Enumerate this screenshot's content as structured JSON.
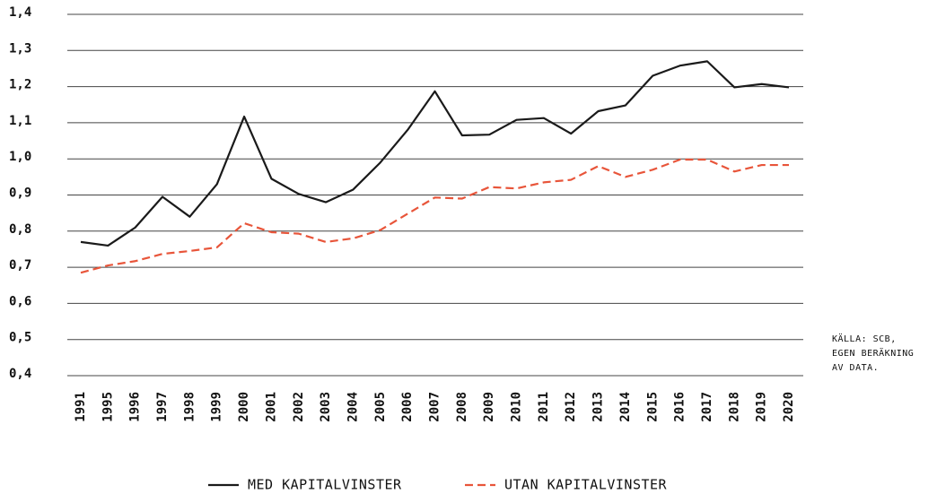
{
  "chart_data": {
    "type": "line",
    "categories": [
      "1991",
      "1995",
      "1996",
      "1997",
      "1998",
      "1999",
      "2000",
      "2001",
      "2002",
      "2003",
      "2004",
      "2005",
      "2006",
      "2007",
      "2008",
      "2009",
      "2010",
      "2011",
      "2012",
      "2013",
      "2014",
      "2015",
      "2016",
      "2017",
      "2018",
      "2019",
      "2020"
    ],
    "series": [
      {
        "name": "MED KAPITALVINSTER",
        "color": "#1a1a1a",
        "dash": false,
        "values": [
          0.77,
          0.76,
          0.81,
          0.895,
          0.84,
          0.93,
          1.117,
          0.945,
          0.903,
          0.88,
          0.915,
          0.99,
          1.08,
          1.187,
          1.065,
          1.067,
          1.108,
          1.113,
          1.07,
          1.132,
          1.148,
          1.23,
          1.258,
          1.27,
          1.198,
          1.207,
          1.198
        ]
      },
      {
        "name": "UTAN KAPITALVINSTER",
        "color": "#e8553a",
        "dash": true,
        "values": [
          0.685,
          0.705,
          0.717,
          0.737,
          0.745,
          0.755,
          0.822,
          0.797,
          0.793,
          0.77,
          0.78,
          0.803,
          0.848,
          0.893,
          0.89,
          0.922,
          0.918,
          0.935,
          0.942,
          0.98,
          0.95,
          0.97,
          0.998,
          0.998,
          0.965,
          0.983,
          0.983
        ]
      }
    ],
    "ylim": [
      0.4,
      1.4
    ],
    "yticks": [
      {
        "value": 0.4,
        "label": "0,4"
      },
      {
        "value": 0.5,
        "label": "0,5"
      },
      {
        "value": 0.6,
        "label": "0,6"
      },
      {
        "value": 0.7,
        "label": "0,7"
      },
      {
        "value": 0.8,
        "label": "0,8"
      },
      {
        "value": 0.9,
        "label": "0,9"
      },
      {
        "value": 1.0,
        "label": "1,0"
      },
      {
        "value": 1.1,
        "label": "1,1"
      },
      {
        "value": 1.2,
        "label": "1,2"
      },
      {
        "value": 1.3,
        "label": "1,3"
      },
      {
        "value": 1.4,
        "label": "1,4"
      }
    ],
    "grid": true,
    "legend": "bottom",
    "annotation": [
      "KÄLLA: SCB,",
      "EGEN BERÄKNING",
      "AV DATA."
    ]
  }
}
